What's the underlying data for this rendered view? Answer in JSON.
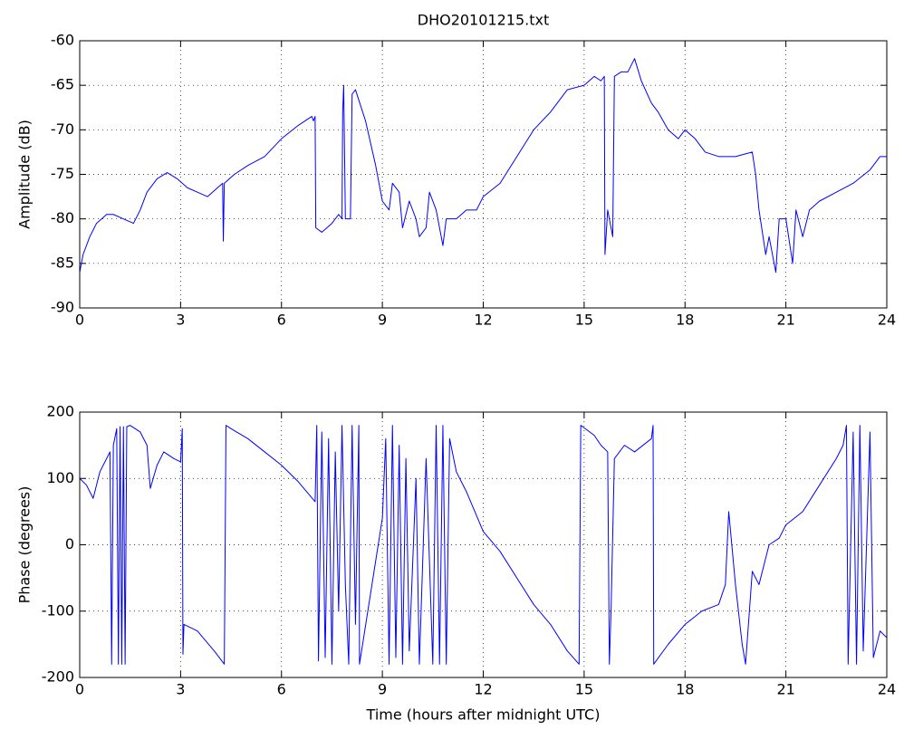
{
  "chart_data": [
    {
      "type": "line",
      "title": "DHO20101215.txt",
      "ylabel": "Amplitude (dB)",
      "color": "#0000ff",
      "grid": true,
      "xlim": [
        0,
        24
      ],
      "xticks": [
        0,
        3,
        6,
        9,
        12,
        15,
        18,
        21,
        24
      ],
      "ylim": [
        -90,
        -60
      ],
      "yticks": [
        -90,
        -85,
        -80,
        -75,
        -70,
        -65,
        -60
      ],
      "x": [
        0,
        0.1,
        0.3,
        0.5,
        0.8,
        1.0,
        1.3,
        1.6,
        1.8,
        2.0,
        2.3,
        2.6,
        2.9,
        3.2,
        3.5,
        3.8,
        4.1,
        4.25,
        4.27,
        4.3,
        4.6,
        5.0,
        5.5,
        6.0,
        6.5,
        6.9,
        6.95,
        7.0,
        7.02,
        7.2,
        7.5,
        7.7,
        7.8,
        7.82,
        7.85,
        7.9,
        8.05,
        8.1,
        8.2,
        8.5,
        8.8,
        9.0,
        9.2,
        9.3,
        9.5,
        9.6,
        9.8,
        10.0,
        10.1,
        10.3,
        10.4,
        10.6,
        10.8,
        10.9,
        11.2,
        11.5,
        11.8,
        12.0,
        12.5,
        13.0,
        13.5,
        14.0,
        14.5,
        15.0,
        15.3,
        15.5,
        15.6,
        15.62,
        15.7,
        15.85,
        15.9,
        16.1,
        16.3,
        16.5,
        16.7,
        17.0,
        17.2,
        17.5,
        17.8,
        18.0,
        18.3,
        18.6,
        19.0,
        19.5,
        20.0,
        20.1,
        20.2,
        20.4,
        20.5,
        20.7,
        20.8,
        21.0,
        21.2,
        21.3,
        21.5,
        21.7,
        22.0,
        22.5,
        23.0,
        23.5,
        23.8,
        24.0
      ],
      "values": [
        -86,
        -84,
        -82,
        -80.5,
        -79.5,
        -79.5,
        -80,
        -80.5,
        -79,
        -77,
        -75.5,
        -74.8,
        -75.5,
        -76.5,
        -77,
        -77.5,
        -76.5,
        -76,
        -82.5,
        -76,
        -75,
        -74,
        -73,
        -71,
        -69.5,
        -68.5,
        -69,
        -68.5,
        -81,
        -81.5,
        -80.5,
        -79.5,
        -80,
        -68,
        -65,
        -80,
        -80,
        -66,
        -65.5,
        -69,
        -74,
        -78,
        -79,
        -76,
        -77,
        -81,
        -78,
        -80,
        -82,
        -81,
        -77,
        -79,
        -83,
        -80,
        -80,
        -79,
        -79,
        -77.5,
        -76,
        -73,
        -70,
        -68,
        -65.5,
        -65,
        -64,
        -64.5,
        -64,
        -84,
        -79,
        -82,
        -64,
        -63.5,
        -63.5,
        -62,
        -64.5,
        -67,
        -68,
        -70,
        -71,
        -70,
        -71,
        -72.5,
        -73,
        -73,
        -72.5,
        -75,
        -79,
        -84,
        -82,
        -86,
        -80,
        -80,
        -85,
        -79,
        -82,
        -79,
        -78,
        -77,
        -76,
        -74.5,
        -73,
        -73
      ]
    },
    {
      "type": "line",
      "ylabel": "Phase (degrees)",
      "xlabel": "Time (hours after midnight UTC)",
      "color": "#0000ff",
      "grid": true,
      "xlim": [
        0,
        24
      ],
      "xticks": [
        0,
        3,
        6,
        9,
        12,
        15,
        18,
        21,
        24
      ],
      "ylim": [
        -200,
        200
      ],
      "yticks": [
        -200,
        -100,
        0,
        100,
        200
      ],
      "x": [
        0,
        0.2,
        0.4,
        0.6,
        0.9,
        0.95,
        1.0,
        1.1,
        1.15,
        1.2,
        1.25,
        1.3,
        1.35,
        1.4,
        1.5,
        1.8,
        2.0,
        2.1,
        2.3,
        2.5,
        2.8,
        3.0,
        3.05,
        3.07,
        3.1,
        3.5,
        4.0,
        4.3,
        4.35,
        4.5,
        5.0,
        5.5,
        6.0,
        6.5,
        7.0,
        7.05,
        7.1,
        7.2,
        7.3,
        7.4,
        7.5,
        7.6,
        7.7,
        7.8,
        7.9,
        8.0,
        8.1,
        8.2,
        8.3,
        8.32,
        9.0,
        9.1,
        9.2,
        9.3,
        9.4,
        9.5,
        9.6,
        9.7,
        9.8,
        10.0,
        10.1,
        10.3,
        10.5,
        10.6,
        10.7,
        10.8,
        10.9,
        11.0,
        11.2,
        11.5,
        12.0,
        12.5,
        13.0,
        13.5,
        14.0,
        14.5,
        14.85,
        14.9,
        15.3,
        15.5,
        15.7,
        15.75,
        15.8,
        15.9,
        16.2,
        16.5,
        17.0,
        17.05,
        17.07,
        17.5,
        18.0,
        18.5,
        19.0,
        19.2,
        19.3,
        19.5,
        19.7,
        19.8,
        20.0,
        20.2,
        20.5,
        20.8,
        21.0,
        21.5,
        22.0,
        22.5,
        22.7,
        22.8,
        22.85,
        23.0,
        23.1,
        23.2,
        23.3,
        23.5,
        23.6,
        23.8,
        24.0
      ],
      "values": [
        100,
        90,
        70,
        110,
        140,
        -180,
        150,
        175,
        -180,
        178,
        -180,
        178,
        -180,
        178,
        180,
        170,
        150,
        85,
        120,
        140,
        130,
        125,
        175,
        -165,
        -120,
        -130,
        -160,
        -180,
        180,
        175,
        160,
        140,
        120,
        95,
        65,
        180,
        -175,
        170,
        -170,
        160,
        -180,
        140,
        -100,
        180,
        -60,
        -180,
        180,
        -120,
        180,
        -180,
        40,
        160,
        -180,
        180,
        -170,
        150,
        -180,
        130,
        -160,
        100,
        -180,
        130,
        -180,
        180,
        -180,
        180,
        -180,
        160,
        110,
        80,
        20,
        -10,
        -50,
        -90,
        -120,
        -160,
        -180,
        180,
        165,
        150,
        140,
        -180,
        -100,
        130,
        150,
        140,
        160,
        180,
        -180,
        -150,
        -120,
        -100,
        -90,
        -60,
        50,
        -60,
        -150,
        -180,
        -40,
        -60,
        0,
        10,
        30,
        50,
        90,
        130,
        150,
        180,
        -180,
        170,
        -180,
        180,
        -160,
        170,
        -170,
        -130,
        -140
      ]
    }
  ]
}
